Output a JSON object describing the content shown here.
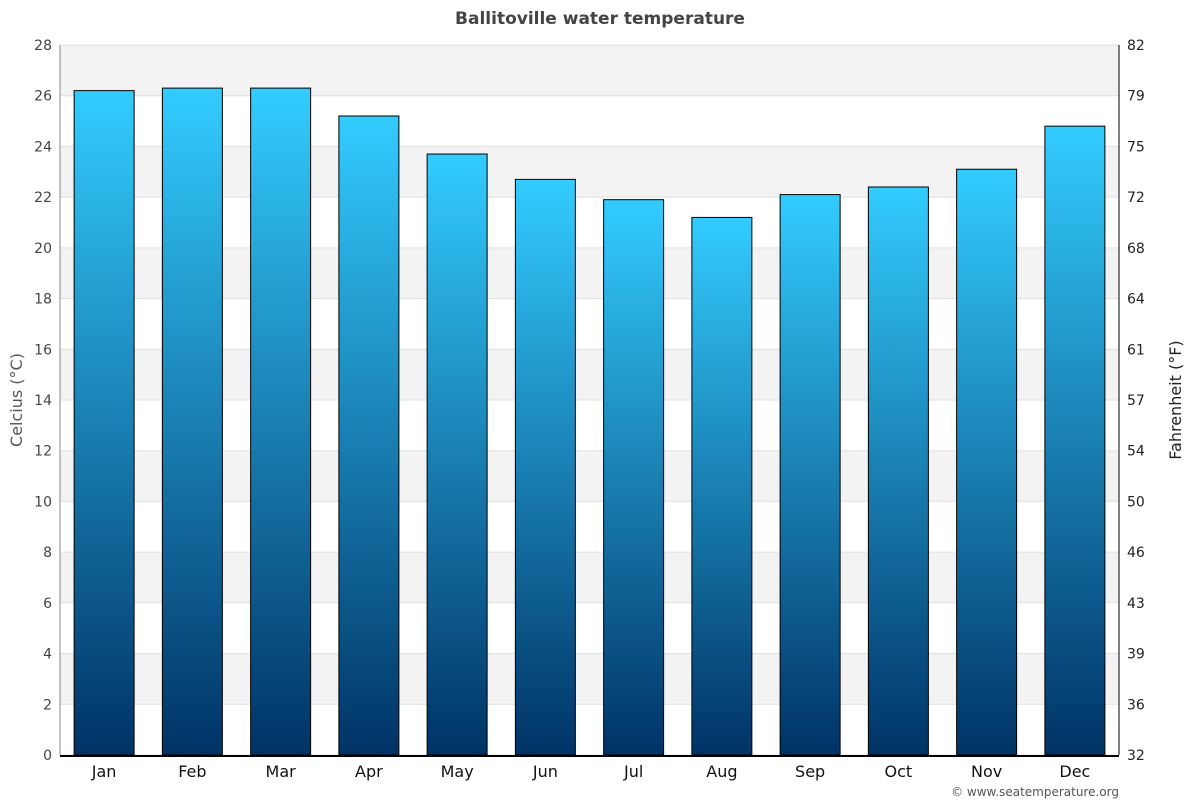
{
  "chart_data": {
    "type": "bar",
    "title": "Ballitoville water temperature",
    "ylabel": "Celcius (°C)",
    "ylabel_right": "Fahrenheit (°F)",
    "categories": [
      "Jan",
      "Feb",
      "Mar",
      "Apr",
      "May",
      "Jun",
      "Jul",
      "Aug",
      "Sep",
      "Oct",
      "Nov",
      "Dec"
    ],
    "values": [
      26.2,
      26.3,
      26.3,
      25.2,
      23.7,
      22.7,
      21.9,
      21.2,
      22.1,
      22.4,
      23.1,
      24.8
    ],
    "ylim": [
      0,
      28
    ],
    "yticks": [
      "0",
      "2",
      "4",
      "6",
      "8",
      "10",
      "12",
      "14",
      "16",
      "18",
      "20",
      "22",
      "24",
      "26",
      "28"
    ],
    "yticks_right": [
      "32",
      "36",
      "39",
      "43",
      "46",
      "50",
      "54",
      "57",
      "61",
      "64",
      "68",
      "72",
      "75",
      "79",
      "82"
    ],
    "grid": true,
    "band_colors": [
      "#ffffff",
      "#f3f3f3"
    ],
    "bar_gradient": [
      "#33ccff",
      "#003366"
    ],
    "credit": "© www.seatemperature.org"
  }
}
